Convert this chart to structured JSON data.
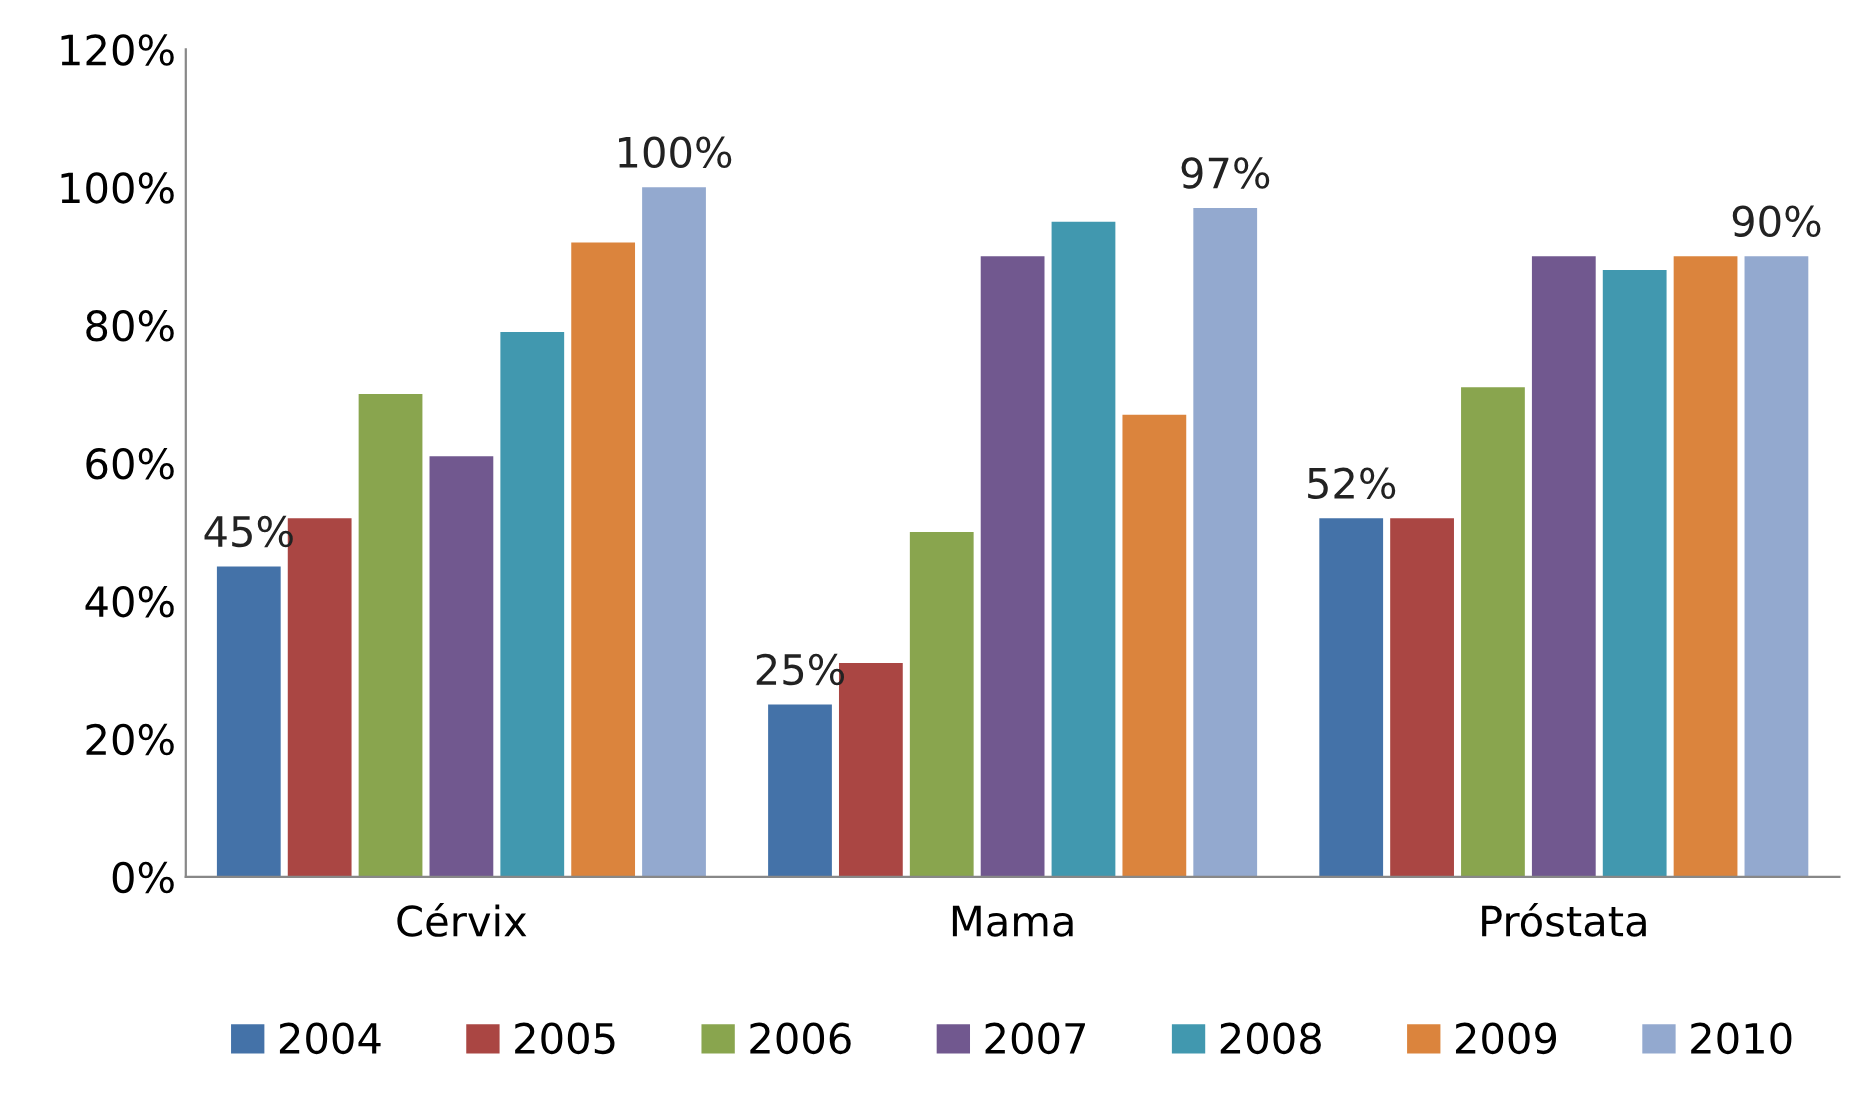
{
  "chart_data": {
    "type": "bar",
    "categories": [
      "Cérvix",
      "Mama",
      "Próstata"
    ],
    "series": [
      {
        "name": "2004",
        "color": "#4472a8",
        "values": [
          45,
          25,
          52
        ],
        "value_labels": [
          "45%",
          "25%",
          "52%"
        ]
      },
      {
        "name": "2005",
        "color": "#aa4643",
        "values": [
          52,
          31,
          52
        ]
      },
      {
        "name": "2006",
        "color": "#89a54e",
        "values": [
          70,
          50,
          71
        ]
      },
      {
        "name": "2007",
        "color": "#71588f",
        "values": [
          61,
          90,
          90
        ]
      },
      {
        "name": "2008",
        "color": "#4198af",
        "values": [
          79,
          95,
          88
        ]
      },
      {
        "name": "2009",
        "color": "#db843d",
        "values": [
          92,
          67,
          90
        ]
      },
      {
        "name": "2010",
        "color": "#93a9cf",
        "values": [
          100,
          97,
          90
        ],
        "value_labels": [
          "100%",
          "97%",
          "90%"
        ]
      }
    ],
    "ylim": [
      0,
      120
    ],
    "yticks": [
      {
        "value": 0,
        "label": "0%"
      },
      {
        "value": 20,
        "label": "20%"
      },
      {
        "value": 40,
        "label": "40%"
      },
      {
        "value": 60,
        "label": "60%"
      },
      {
        "value": 80,
        "label": "80%"
      },
      {
        "value": 100,
        "label": "100%"
      },
      {
        "value": 120,
        "label": "120%"
      }
    ],
    "grid": false,
    "legend": "bottom"
  }
}
